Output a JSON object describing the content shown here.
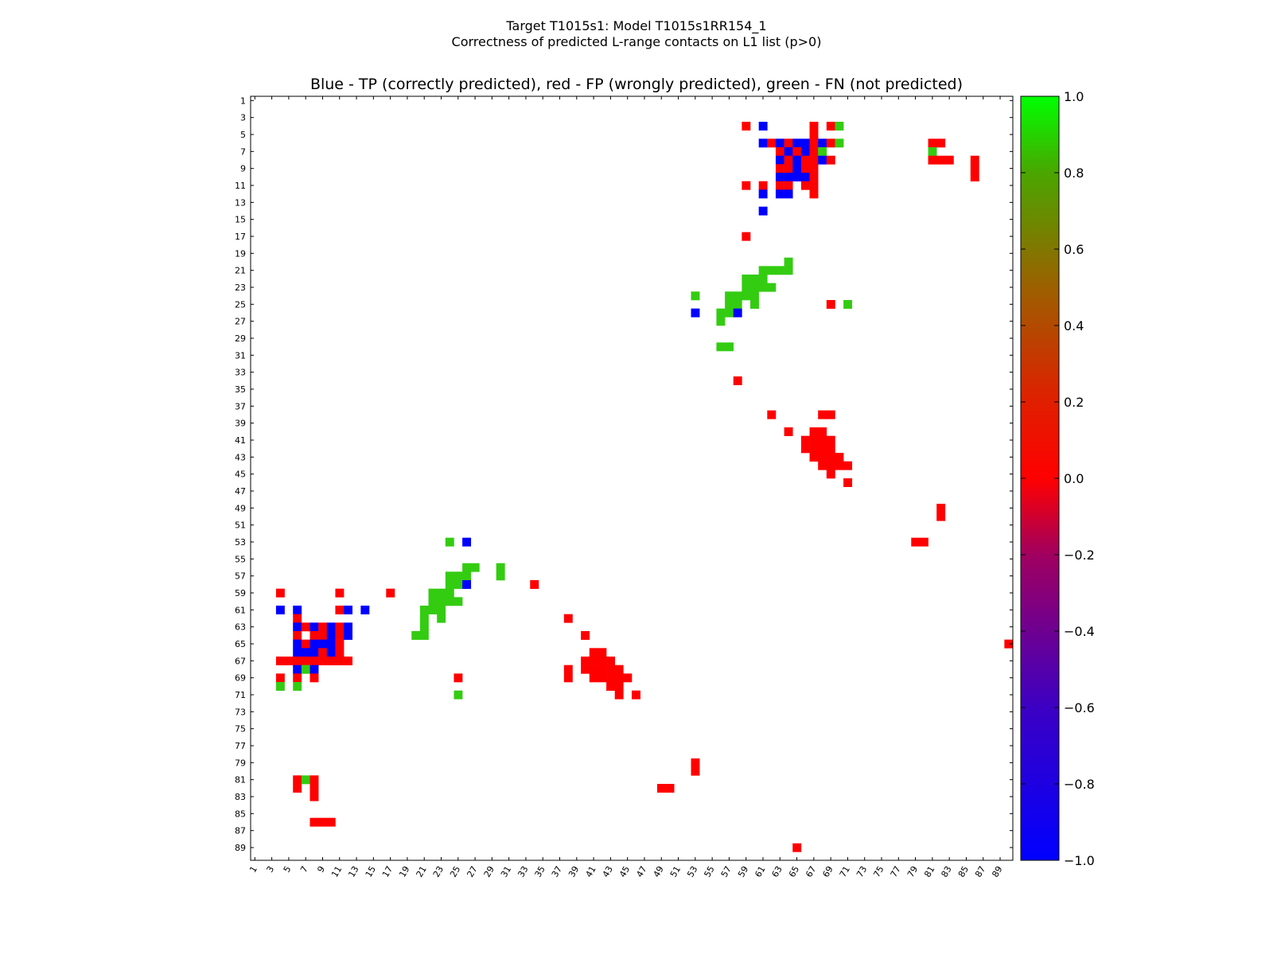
{
  "figure": {
    "title_line1": "Target T1015s1: Model T1015s1RR154_1",
    "title_line2": "Correctness of predicted L-range contacts on L1 list (p>0)",
    "subtitle": "Blue - TP (correctly predicted), red - FP (wrongly predicted), green - FN (not predicted)"
  },
  "chart_data": {
    "type": "heatmap",
    "title": "Blue - TP (correctly predicted), red - FP (wrongly predicted), green - FN (not predicted)",
    "xlabel": "",
    "ylabel": "",
    "xlim": [
      1,
      90
    ],
    "ylim": [
      1,
      90
    ],
    "x_ticks": [
      "1",
      "3",
      "5",
      "7",
      "9",
      "11",
      "13",
      "15",
      "17",
      "19",
      "21",
      "23",
      "25",
      "27",
      "29",
      "31",
      "33",
      "35",
      "37",
      "39",
      "41",
      "43",
      "45",
      "47",
      "49",
      "51",
      "53",
      "55",
      "57",
      "59",
      "61",
      "63",
      "65",
      "67",
      "69",
      "71",
      "73",
      "75",
      "77",
      "79",
      "81",
      "83",
      "85",
      "87",
      "89"
    ],
    "y_ticks": [
      "1",
      "3",
      "5",
      "7",
      "9",
      "11",
      "13",
      "15",
      "17",
      "19",
      "21",
      "23",
      "25",
      "27",
      "29",
      "31",
      "33",
      "35",
      "37",
      "39",
      "41",
      "43",
      "45",
      "47",
      "49",
      "51",
      "53",
      "55",
      "57",
      "59",
      "61",
      "63",
      "65",
      "67",
      "69",
      "71",
      "73",
      "75",
      "77",
      "79",
      "81",
      "83",
      "85",
      "87",
      "89"
    ],
    "colorbar": {
      "min": -1.0,
      "max": 1.0,
      "ticks": [
        "1.0",
        "0.8",
        "0.6",
        "0.4",
        "0.2",
        "0.0",
        "−0.2",
        "−0.4",
        "−0.6",
        "−0.8",
        "−1.0"
      ],
      "low_color": "#0000ff",
      "mid_color": "#ff0000",
      "high_color": "#00ff00"
    },
    "categories": {
      "TP": {
        "label": "TP (correctly predicted)",
        "color": "#0000ff"
      },
      "FP": {
        "label": "FP (wrongly predicted)",
        "color": "#ff0000"
      },
      "FN": {
        "label": "FN (not predicted)",
        "color": "#33cc11"
      }
    },
    "cells": [
      {
        "c": "FP",
        "x": 59,
        "y": 4
      },
      {
        "c": "TP",
        "x": 61,
        "y": 4
      },
      {
        "c": "FP",
        "x": 67,
        "y": 4
      },
      {
        "c": "FP",
        "x": 69,
        "y": 4
      },
      {
        "c": "FN",
        "x": 70,
        "y": 4
      },
      {
        "c": "FP",
        "x": 67,
        "y": 5
      },
      {
        "c": "TP",
        "x": 61,
        "y": 6
      },
      {
        "c": "FP",
        "x": 62,
        "y": 6
      },
      {
        "c": "TP",
        "x": 63,
        "y": 6
      },
      {
        "c": "FP",
        "x": 64,
        "y": 6
      },
      {
        "c": "TP",
        "x": 65,
        "y": 6
      },
      {
        "c": "TP",
        "x": 66,
        "y": 6
      },
      {
        "c": "FP",
        "x": 67,
        "y": 6
      },
      {
        "c": "TP",
        "x": 68,
        "y": 6
      },
      {
        "c": "FP",
        "x": 69,
        "y": 6
      },
      {
        "c": "FN",
        "x": 70,
        "y": 6
      },
      {
        "c": "FP",
        "x": 81,
        "y": 6
      },
      {
        "c": "FP",
        "x": 82,
        "y": 6
      },
      {
        "c": "FP",
        "x": 63,
        "y": 7
      },
      {
        "c": "TP",
        "x": 64,
        "y": 7
      },
      {
        "c": "FP",
        "x": 65,
        "y": 7
      },
      {
        "c": "TP",
        "x": 66,
        "y": 7
      },
      {
        "c": "FP",
        "x": 67,
        "y": 7
      },
      {
        "c": "FN",
        "x": 68,
        "y": 7
      },
      {
        "c": "FN",
        "x": 81,
        "y": 7
      },
      {
        "c": "TP",
        "x": 63,
        "y": 8
      },
      {
        "c": "FP",
        "x": 64,
        "y": 8
      },
      {
        "c": "TP",
        "x": 65,
        "y": 8
      },
      {
        "c": "FP",
        "x": 66,
        "y": 8
      },
      {
        "c": "FP",
        "x": 67,
        "y": 8
      },
      {
        "c": "TP",
        "x": 68,
        "y": 8
      },
      {
        "c": "FP",
        "x": 69,
        "y": 8
      },
      {
        "c": "FP",
        "x": 81,
        "y": 8
      },
      {
        "c": "FP",
        "x": 82,
        "y": 8
      },
      {
        "c": "FP",
        "x": 83,
        "y": 8
      },
      {
        "c": "FP",
        "x": 86,
        "y": 8
      },
      {
        "c": "FP",
        "x": 63,
        "y": 9
      },
      {
        "c": "FP",
        "x": 64,
        "y": 9
      },
      {
        "c": "TP",
        "x": 65,
        "y": 9
      },
      {
        "c": "FP",
        "x": 66,
        "y": 9
      },
      {
        "c": "FP",
        "x": 67,
        "y": 9
      },
      {
        "c": "FP",
        "x": 86,
        "y": 9
      },
      {
        "c": "TP",
        "x": 63,
        "y": 10
      },
      {
        "c": "TP",
        "x": 64,
        "y": 10
      },
      {
        "c": "TP",
        "x": 65,
        "y": 10
      },
      {
        "c": "TP",
        "x": 66,
        "y": 10
      },
      {
        "c": "FP",
        "x": 67,
        "y": 10
      },
      {
        "c": "FP",
        "x": 86,
        "y": 10
      },
      {
        "c": "FP",
        "x": 59,
        "y": 11
      },
      {
        "c": "FP",
        "x": 61,
        "y": 11
      },
      {
        "c": "FP",
        "x": 63,
        "y": 11
      },
      {
        "c": "FP",
        "x": 64,
        "y": 11
      },
      {
        "c": "FP",
        "x": 66,
        "y": 11
      },
      {
        "c": "FP",
        "x": 67,
        "y": 11
      },
      {
        "c": "TP",
        "x": 61,
        "y": 12
      },
      {
        "c": "TP",
        "x": 63,
        "y": 12
      },
      {
        "c": "TP",
        "x": 64,
        "y": 12
      },
      {
        "c": "FP",
        "x": 67,
        "y": 12
      },
      {
        "c": "TP",
        "x": 61,
        "y": 14
      },
      {
        "c": "FP",
        "x": 59,
        "y": 17
      },
      {
        "c": "FN",
        "x": 64,
        "y": 20
      },
      {
        "c": "FN",
        "x": 61,
        "y": 21
      },
      {
        "c": "FN",
        "x": 62,
        "y": 21
      },
      {
        "c": "FN",
        "x": 63,
        "y": 21
      },
      {
        "c": "FN",
        "x": 64,
        "y": 21
      },
      {
        "c": "FN",
        "x": 59,
        "y": 22
      },
      {
        "c": "FN",
        "x": 60,
        "y": 22
      },
      {
        "c": "FN",
        "x": 61,
        "y": 22
      },
      {
        "c": "FN",
        "x": 59,
        "y": 23
      },
      {
        "c": "FN",
        "x": 60,
        "y": 23
      },
      {
        "c": "FN",
        "x": 61,
        "y": 23
      },
      {
        "c": "FN",
        "x": 62,
        "y": 23
      },
      {
        "c": "FN",
        "x": 53,
        "y": 24
      },
      {
        "c": "FN",
        "x": 57,
        "y": 24
      },
      {
        "c": "FN",
        "x": 58,
        "y": 24
      },
      {
        "c": "FN",
        "x": 59,
        "y": 24
      },
      {
        "c": "FN",
        "x": 60,
        "y": 24
      },
      {
        "c": "FN",
        "x": 57,
        "y": 25
      },
      {
        "c": "FN",
        "x": 58,
        "y": 25
      },
      {
        "c": "FN",
        "x": 60,
        "y": 25
      },
      {
        "c": "FP",
        "x": 69,
        "y": 25
      },
      {
        "c": "FN",
        "x": 71,
        "y": 25
      },
      {
        "c": "TP",
        "x": 53,
        "y": 26
      },
      {
        "c": "FN",
        "x": 56,
        "y": 26
      },
      {
        "c": "FN",
        "x": 57,
        "y": 26
      },
      {
        "c": "TP",
        "x": 58,
        "y": 26
      },
      {
        "c": "FN",
        "x": 56,
        "y": 27
      },
      {
        "c": "FN",
        "x": 56,
        "y": 30
      },
      {
        "c": "FN",
        "x": 57,
        "y": 30
      },
      {
        "c": "FP",
        "x": 58,
        "y": 34
      },
      {
        "c": "FP",
        "x": 68,
        "y": 38
      },
      {
        "c": "FP",
        "x": 69,
        "y": 38
      },
      {
        "c": "FP",
        "x": 62,
        "y": 38
      },
      {
        "c": "FP",
        "x": 64,
        "y": 40
      },
      {
        "c": "FP",
        "x": 67,
        "y": 40
      },
      {
        "c": "FP",
        "x": 68,
        "y": 40
      },
      {
        "c": "FP",
        "x": 66,
        "y": 41
      },
      {
        "c": "FP",
        "x": 67,
        "y": 41
      },
      {
        "c": "FP",
        "x": 68,
        "y": 41
      },
      {
        "c": "FP",
        "x": 69,
        "y": 41
      },
      {
        "c": "FP",
        "x": 66,
        "y": 42
      },
      {
        "c": "FP",
        "x": 67,
        "y": 42
      },
      {
        "c": "FP",
        "x": 68,
        "y": 42
      },
      {
        "c": "FP",
        "x": 69,
        "y": 42
      },
      {
        "c": "FP",
        "x": 67,
        "y": 43
      },
      {
        "c": "FP",
        "x": 68,
        "y": 43
      },
      {
        "c": "FP",
        "x": 69,
        "y": 43
      },
      {
        "c": "FP",
        "x": 70,
        "y": 43
      },
      {
        "c": "FP",
        "x": 68,
        "y": 44
      },
      {
        "c": "FP",
        "x": 69,
        "y": 44
      },
      {
        "c": "FP",
        "x": 70,
        "y": 44
      },
      {
        "c": "FP",
        "x": 71,
        "y": 44
      },
      {
        "c": "FP",
        "x": 69,
        "y": 45
      },
      {
        "c": "FP",
        "x": 71,
        "y": 46
      },
      {
        "c": "FP",
        "x": 82,
        "y": 49
      },
      {
        "c": "FP",
        "x": 82,
        "y": 50
      },
      {
        "c": "FN",
        "x": 24,
        "y": 53
      },
      {
        "c": "TP",
        "x": 26,
        "y": 53
      },
      {
        "c": "FP",
        "x": 79,
        "y": 53
      },
      {
        "c": "FP",
        "x": 80,
        "y": 53
      },
      {
        "c": "FN",
        "x": 26,
        "y": 56
      },
      {
        "c": "FN",
        "x": 27,
        "y": 56
      },
      {
        "c": "FN",
        "x": 30,
        "y": 56
      },
      {
        "c": "FN",
        "x": 24,
        "y": 57
      },
      {
        "c": "FN",
        "x": 25,
        "y": 57
      },
      {
        "c": "FN",
        "x": 26,
        "y": 57
      },
      {
        "c": "FN",
        "x": 30,
        "y": 57
      },
      {
        "c": "FN",
        "x": 24,
        "y": 58
      },
      {
        "c": "FN",
        "x": 25,
        "y": 58
      },
      {
        "c": "TP",
        "x": 26,
        "y": 58
      },
      {
        "c": "FP",
        "x": 34,
        "y": 58
      },
      {
        "c": "FP",
        "x": 4,
        "y": 59
      },
      {
        "c": "FP",
        "x": 11,
        "y": 59
      },
      {
        "c": "FP",
        "x": 17,
        "y": 59
      },
      {
        "c": "FN",
        "x": 22,
        "y": 59
      },
      {
        "c": "FN",
        "x": 23,
        "y": 59
      },
      {
        "c": "FN",
        "x": 24,
        "y": 59
      },
      {
        "c": "FN",
        "x": 22,
        "y": 60
      },
      {
        "c": "FN",
        "x": 23,
        "y": 60
      },
      {
        "c": "FN",
        "x": 24,
        "y": 60
      },
      {
        "c": "FN",
        "x": 25,
        "y": 60
      },
      {
        "c": "TP",
        "x": 4,
        "y": 61
      },
      {
        "c": "TP",
        "x": 6,
        "y": 61
      },
      {
        "c": "FP",
        "x": 11,
        "y": 61
      },
      {
        "c": "TP",
        "x": 12,
        "y": 61
      },
      {
        "c": "TP",
        "x": 14,
        "y": 61
      },
      {
        "c": "FN",
        "x": 21,
        "y": 61
      },
      {
        "c": "FN",
        "x": 22,
        "y": 61
      },
      {
        "c": "FN",
        "x": 23,
        "y": 61
      },
      {
        "c": "FP",
        "x": 6,
        "y": 62
      },
      {
        "c": "FN",
        "x": 21,
        "y": 62
      },
      {
        "c": "FN",
        "x": 23,
        "y": 62
      },
      {
        "c": "FP",
        "x": 38,
        "y": 62
      },
      {
        "c": "TP",
        "x": 6,
        "y": 63
      },
      {
        "c": "FP",
        "x": 7,
        "y": 63
      },
      {
        "c": "TP",
        "x": 8,
        "y": 63
      },
      {
        "c": "FP",
        "x": 9,
        "y": 63
      },
      {
        "c": "TP",
        "x": 10,
        "y": 63
      },
      {
        "c": "FP",
        "x": 11,
        "y": 63
      },
      {
        "c": "TP",
        "x": 12,
        "y": 63
      },
      {
        "c": "FN",
        "x": 21,
        "y": 63
      },
      {
        "c": "FP",
        "x": 6,
        "y": 64
      },
      {
        "c": "FP",
        "x": 8,
        "y": 64
      },
      {
        "c": "FP",
        "x": 9,
        "y": 64
      },
      {
        "c": "TP",
        "x": 10,
        "y": 64
      },
      {
        "c": "FP",
        "x": 11,
        "y": 64
      },
      {
        "c": "TP",
        "x": 12,
        "y": 64
      },
      {
        "c": "FN",
        "x": 20,
        "y": 64
      },
      {
        "c": "FN",
        "x": 21,
        "y": 64
      },
      {
        "c": "FP",
        "x": 40,
        "y": 64
      },
      {
        "c": "TP",
        "x": 6,
        "y": 65
      },
      {
        "c": "FP",
        "x": 7,
        "y": 65
      },
      {
        "c": "TP",
        "x": 8,
        "y": 65
      },
      {
        "c": "TP",
        "x": 9,
        "y": 65
      },
      {
        "c": "TP",
        "x": 10,
        "y": 65
      },
      {
        "c": "FP",
        "x": 11,
        "y": 65
      },
      {
        "c": "FP",
        "x": 90,
        "y": 65
      },
      {
        "c": "TP",
        "x": 6,
        "y": 66
      },
      {
        "c": "TP",
        "x": 7,
        "y": 66
      },
      {
        "c": "TP",
        "x": 8,
        "y": 66
      },
      {
        "c": "FP",
        "x": 9,
        "y": 66
      },
      {
        "c": "TP",
        "x": 10,
        "y": 66
      },
      {
        "c": "FP",
        "x": 11,
        "y": 66
      },
      {
        "c": "FP",
        "x": 41,
        "y": 66
      },
      {
        "c": "FP",
        "x": 42,
        "y": 66
      },
      {
        "c": "FP",
        "x": 4,
        "y": 67
      },
      {
        "c": "FP",
        "x": 5,
        "y": 67
      },
      {
        "c": "FP",
        "x": 6,
        "y": 67
      },
      {
        "c": "FP",
        "x": 7,
        "y": 67
      },
      {
        "c": "FP",
        "x": 8,
        "y": 67
      },
      {
        "c": "FP",
        "x": 9,
        "y": 67
      },
      {
        "c": "FP",
        "x": 10,
        "y": 67
      },
      {
        "c": "FP",
        "x": 11,
        "y": 67
      },
      {
        "c": "FP",
        "x": 12,
        "y": 67
      },
      {
        "c": "FP",
        "x": 40,
        "y": 67
      },
      {
        "c": "FP",
        "x": 41,
        "y": 67
      },
      {
        "c": "FP",
        "x": 42,
        "y": 67
      },
      {
        "c": "FP",
        "x": 43,
        "y": 67
      },
      {
        "c": "TP",
        "x": 6,
        "y": 68
      },
      {
        "c": "FN",
        "x": 7,
        "y": 68
      },
      {
        "c": "TP",
        "x": 8,
        "y": 68
      },
      {
        "c": "FP",
        "x": 38,
        "y": 68
      },
      {
        "c": "FP",
        "x": 40,
        "y": 68
      },
      {
        "c": "FP",
        "x": 41,
        "y": 68
      },
      {
        "c": "FP",
        "x": 42,
        "y": 68
      },
      {
        "c": "FP",
        "x": 43,
        "y": 68
      },
      {
        "c": "FP",
        "x": 44,
        "y": 68
      },
      {
        "c": "FP",
        "x": 4,
        "y": 69
      },
      {
        "c": "FP",
        "x": 6,
        "y": 69
      },
      {
        "c": "FP",
        "x": 8,
        "y": 69
      },
      {
        "c": "FP",
        "x": 25,
        "y": 69
      },
      {
        "c": "FP",
        "x": 38,
        "y": 69
      },
      {
        "c": "FP",
        "x": 41,
        "y": 69
      },
      {
        "c": "FP",
        "x": 42,
        "y": 69
      },
      {
        "c": "FP",
        "x": 43,
        "y": 69
      },
      {
        "c": "FP",
        "x": 44,
        "y": 69
      },
      {
        "c": "FP",
        "x": 45,
        "y": 69
      },
      {
        "c": "FN",
        "x": 4,
        "y": 70
      },
      {
        "c": "FN",
        "x": 6,
        "y": 70
      },
      {
        "c": "FP",
        "x": 43,
        "y": 70
      },
      {
        "c": "FP",
        "x": 44,
        "y": 70
      },
      {
        "c": "FN",
        "x": 25,
        "y": 71
      },
      {
        "c": "FP",
        "x": 44,
        "y": 71
      },
      {
        "c": "FP",
        "x": 46,
        "y": 71
      },
      {
        "c": "FP",
        "x": 53,
        "y": 79
      },
      {
        "c": "FP",
        "x": 53,
        "y": 80
      },
      {
        "c": "FP",
        "x": 6,
        "y": 81
      },
      {
        "c": "FN",
        "x": 7,
        "y": 81
      },
      {
        "c": "FP",
        "x": 8,
        "y": 81
      },
      {
        "c": "FP",
        "x": 6,
        "y": 82
      },
      {
        "c": "FP",
        "x": 8,
        "y": 82
      },
      {
        "c": "FP",
        "x": 49,
        "y": 82
      },
      {
        "c": "FP",
        "x": 50,
        "y": 82
      },
      {
        "c": "FP",
        "x": 8,
        "y": 83
      },
      {
        "c": "FP",
        "x": 8,
        "y": 86
      },
      {
        "c": "FP",
        "x": 9,
        "y": 86
      },
      {
        "c": "FP",
        "x": 10,
        "y": 86
      },
      {
        "c": "FP",
        "x": 65,
        "y": 89
      }
    ]
  }
}
